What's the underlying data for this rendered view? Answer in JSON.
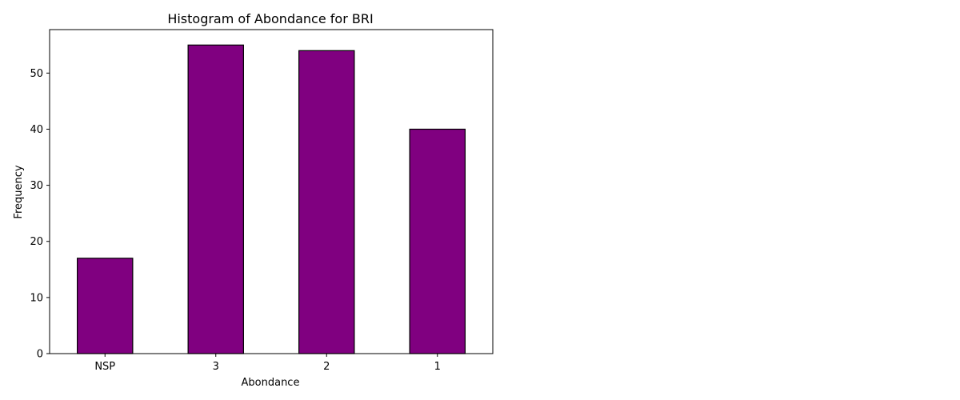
{
  "chart_data": {
    "type": "bar",
    "title": "Histogram of Abondance for BRI",
    "xlabel": "Abondance",
    "ylabel": "Frequency",
    "categories": [
      "NSP",
      "3",
      "2",
      "1"
    ],
    "values": [
      17,
      55,
      54,
      40
    ],
    "ylim": [
      0,
      57.75
    ],
    "yticks": [
      0,
      10,
      20,
      30,
      40,
      50
    ],
    "bar_color": "#800080",
    "edge_color": "#000000",
    "grid": false,
    "legend": "none"
  }
}
